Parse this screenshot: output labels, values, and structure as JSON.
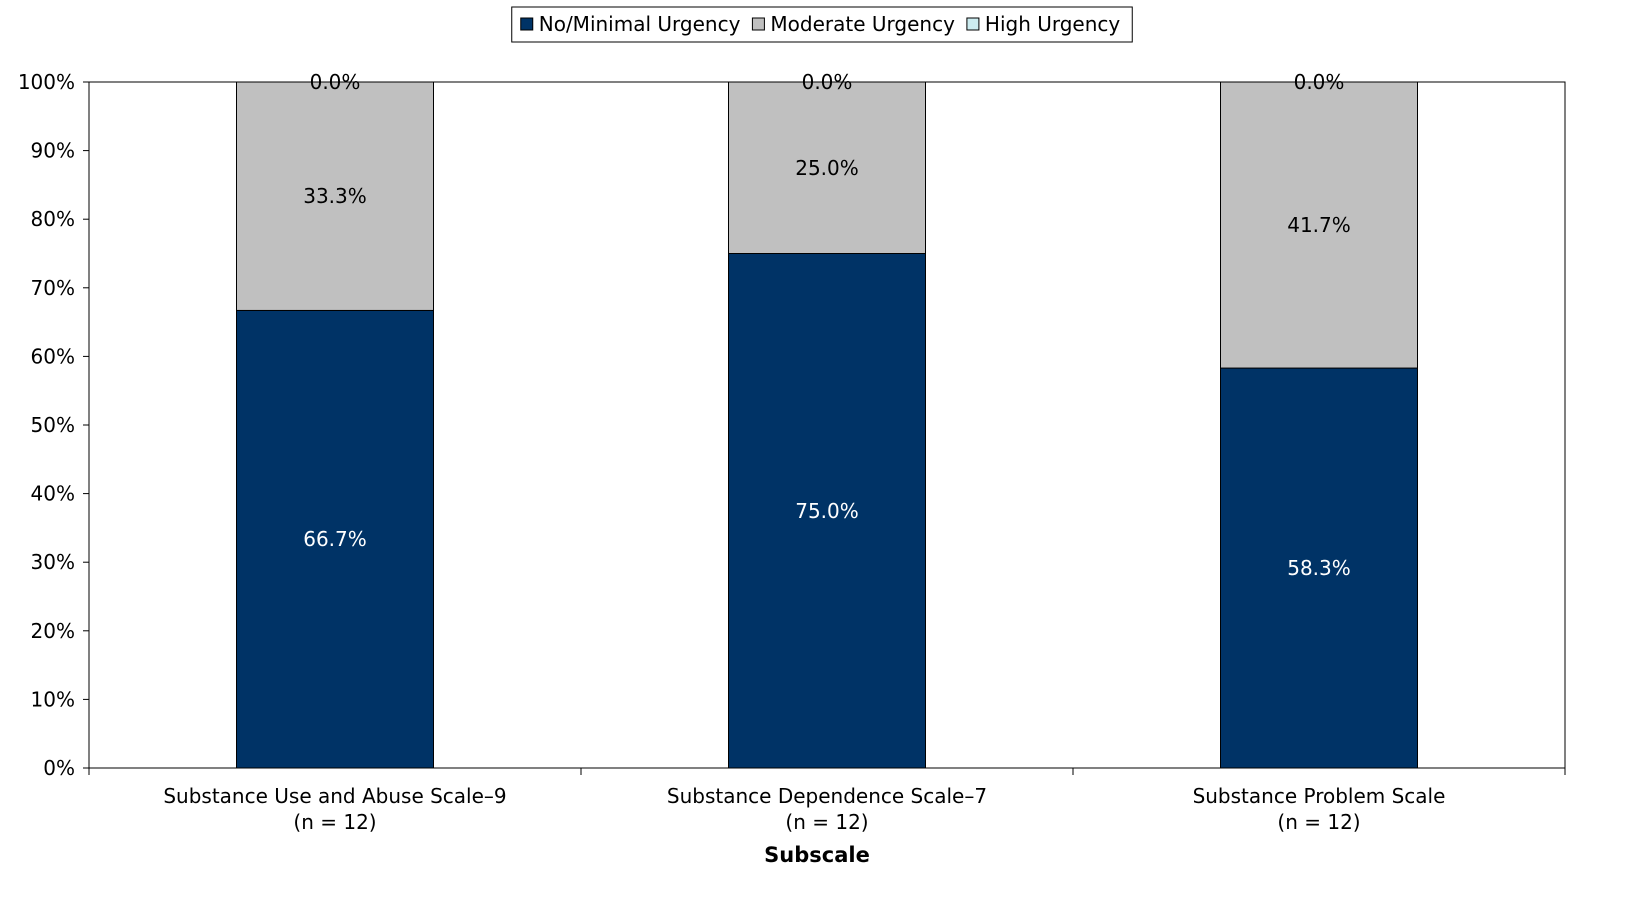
{
  "chart_data": {
    "type": "bar",
    "stacked": true,
    "title": "",
    "xlabel": "Subscale",
    "ylabel": "",
    "ylim": [
      0,
      100
    ],
    "yticks": [
      "0%",
      "10%",
      "20%",
      "30%",
      "40%",
      "50%",
      "60%",
      "70%",
      "80%",
      "90%",
      "100%"
    ],
    "grid": false,
    "legend_position": "top",
    "categories": [
      {
        "name": "Substance Use and Abuse Scale–9",
        "n": "(n = 12)"
      },
      {
        "name": "Substance Dependence Scale–7",
        "n": "(n = 12)"
      },
      {
        "name": "Substance Problem Scale",
        "n": "(n = 12)"
      }
    ],
    "series": [
      {
        "name": "No/Minimal Urgency",
        "color": "#003366",
        "label_color": "#ffffff",
        "values": [
          66.7,
          75.0,
          58.3
        ],
        "labels": [
          "66.7%",
          "75.0%",
          "58.3%"
        ]
      },
      {
        "name": "Moderate Urgency",
        "color": "#c0c0c0",
        "label_color": "#000000",
        "values": [
          33.3,
          25.0,
          41.7
        ],
        "labels": [
          "33.3%",
          "25.0%",
          "41.7%"
        ]
      },
      {
        "name": "High Urgency",
        "color": "#ccecf0",
        "label_color": "#000000",
        "values": [
          0.0,
          0.0,
          0.0
        ],
        "labels": [
          "0.0%",
          "0.0%",
          "0.0%"
        ]
      }
    ]
  }
}
